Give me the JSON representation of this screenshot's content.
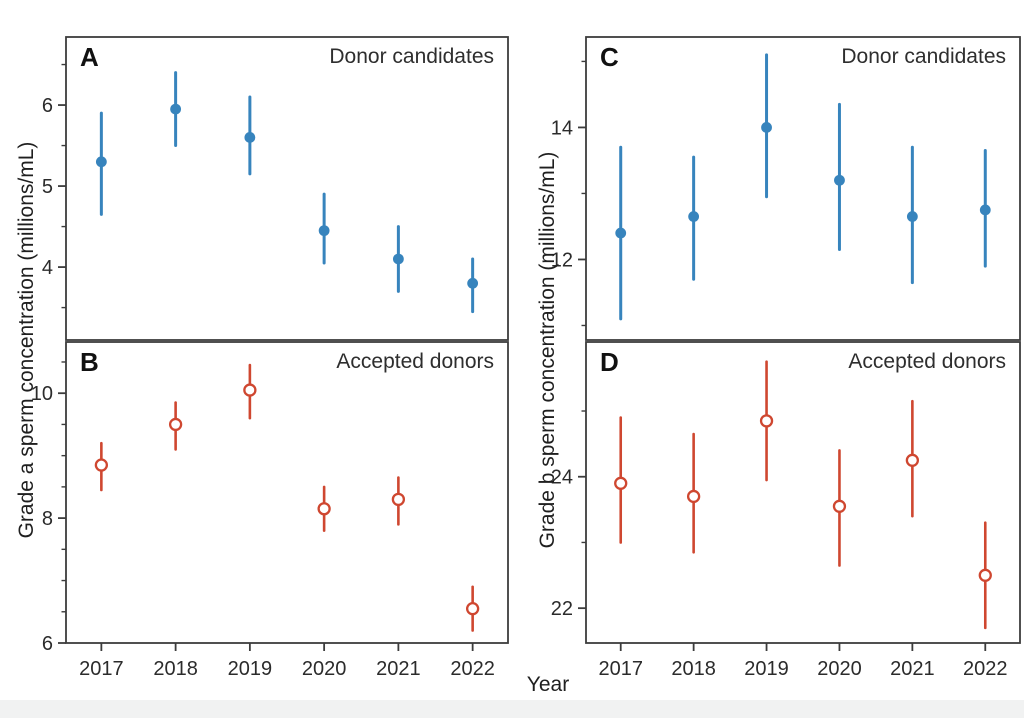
{
  "figure": {
    "x_label": "Year",
    "left_axis_label": "Grade a sperm concentration (millions/mL)",
    "right_axis_label": "Grade b sperm concentration (millions/mL)",
    "colors": {
      "donor_candidates_blue": "#3784bd",
      "accepted_donors_red": "#cf4730",
      "frame": "#3c3c3c",
      "tick_text": "#2b2b2b",
      "footer_strip": "#f1f2f2",
      "background": "#ffffff"
    }
  },
  "chart_data": [
    {
      "type": "scatter",
      "panel_label": "A",
      "corner_label": "Donor candidates",
      "ylabel": "Grade a sperm concentration (millions/mL)",
      "xlabel": "Year",
      "marker": "filled-circle",
      "color": "#3784bd",
      "categories": [
        "2017",
        "2018",
        "2019",
        "2020",
        "2021",
        "2022"
      ],
      "series": [
        {
          "name": "Donor candidates, grade a",
          "values": [
            5.3,
            5.95,
            5.6,
            4.45,
            4.1,
            3.8
          ],
          "err_low": [
            4.65,
            5.5,
            5.15,
            4.05,
            3.7,
            3.45
          ],
          "err_high": [
            5.9,
            6.4,
            6.1,
            4.9,
            4.5,
            4.1
          ]
        }
      ],
      "ylim": [
        3.1,
        6.84
      ],
      "yticks": [
        4,
        5,
        6
      ],
      "yticks_minor": [
        3.5,
        4.5,
        5.5,
        6.5
      ],
      "grid": false,
      "show_x_tick_labels": false
    },
    {
      "type": "scatter",
      "panel_label": "B",
      "corner_label": "Accepted donors",
      "ylabel": "Grade a sperm concentration (millions/mL)",
      "xlabel": "Year",
      "marker": "open-circle",
      "color": "#cf4730",
      "categories": [
        "2017",
        "2018",
        "2019",
        "2020",
        "2021",
        "2022"
      ],
      "series": [
        {
          "name": "Accepted donors, grade a",
          "values": [
            8.85,
            9.5,
            10.05,
            8.15,
            8.3,
            6.55
          ],
          "err_low": [
            8.45,
            9.1,
            9.6,
            7.8,
            7.9,
            6.2
          ],
          "err_high": [
            9.2,
            9.85,
            10.45,
            8.5,
            8.65,
            6.9
          ]
        }
      ],
      "ylim": [
        6.0,
        10.82
      ],
      "yticks": [
        6,
        8,
        10
      ],
      "yticks_minor": [
        6.5,
        7,
        7.5,
        8.5,
        9,
        9.5,
        10.5
      ],
      "grid": false,
      "show_x_tick_labels": true
    },
    {
      "type": "scatter",
      "panel_label": "C",
      "corner_label": "Donor candidates",
      "ylabel": "Grade b sperm concentration (millions/mL)",
      "xlabel": "Year",
      "marker": "filled-circle",
      "color": "#3784bd",
      "categories": [
        "2017",
        "2018",
        "2019",
        "2020",
        "2021",
        "2022"
      ],
      "series": [
        {
          "name": "Donor candidates, grade b",
          "values": [
            12.4,
            12.65,
            14.0,
            13.2,
            12.65,
            12.75
          ],
          "err_low": [
            11.1,
            11.7,
            12.95,
            12.15,
            11.65,
            11.9
          ],
          "err_high": [
            13.7,
            13.55,
            15.1,
            14.35,
            13.7,
            13.65
          ]
        }
      ],
      "ylim": [
        10.78,
        15.37
      ],
      "yticks": [
        12,
        14
      ],
      "yticks_minor": [
        11,
        13,
        15
      ],
      "grid": false,
      "show_x_tick_labels": false
    },
    {
      "type": "scatter",
      "panel_label": "D",
      "corner_label": "Accepted donors",
      "ylabel": "Grade b sperm concentration (millions/mL)",
      "xlabel": "Year",
      "marker": "open-circle",
      "color": "#cf4730",
      "categories": [
        "2017",
        "2018",
        "2019",
        "2020",
        "2021",
        "2022"
      ],
      "series": [
        {
          "name": "Accepted donors, grade b",
          "values": [
            23.9,
            23.7,
            24.85,
            23.55,
            24.25,
            22.5
          ],
          "err_low": [
            23.0,
            22.85,
            23.95,
            22.65,
            23.4,
            21.7
          ],
          "err_high": [
            24.9,
            24.65,
            25.75,
            24.4,
            25.15,
            23.3
          ]
        }
      ],
      "ylim": [
        21.47,
        26.05
      ],
      "yticks": [
        22,
        24
      ],
      "yticks_minor": [
        23,
        25
      ],
      "grid": false,
      "show_x_tick_labels": true
    }
  ]
}
